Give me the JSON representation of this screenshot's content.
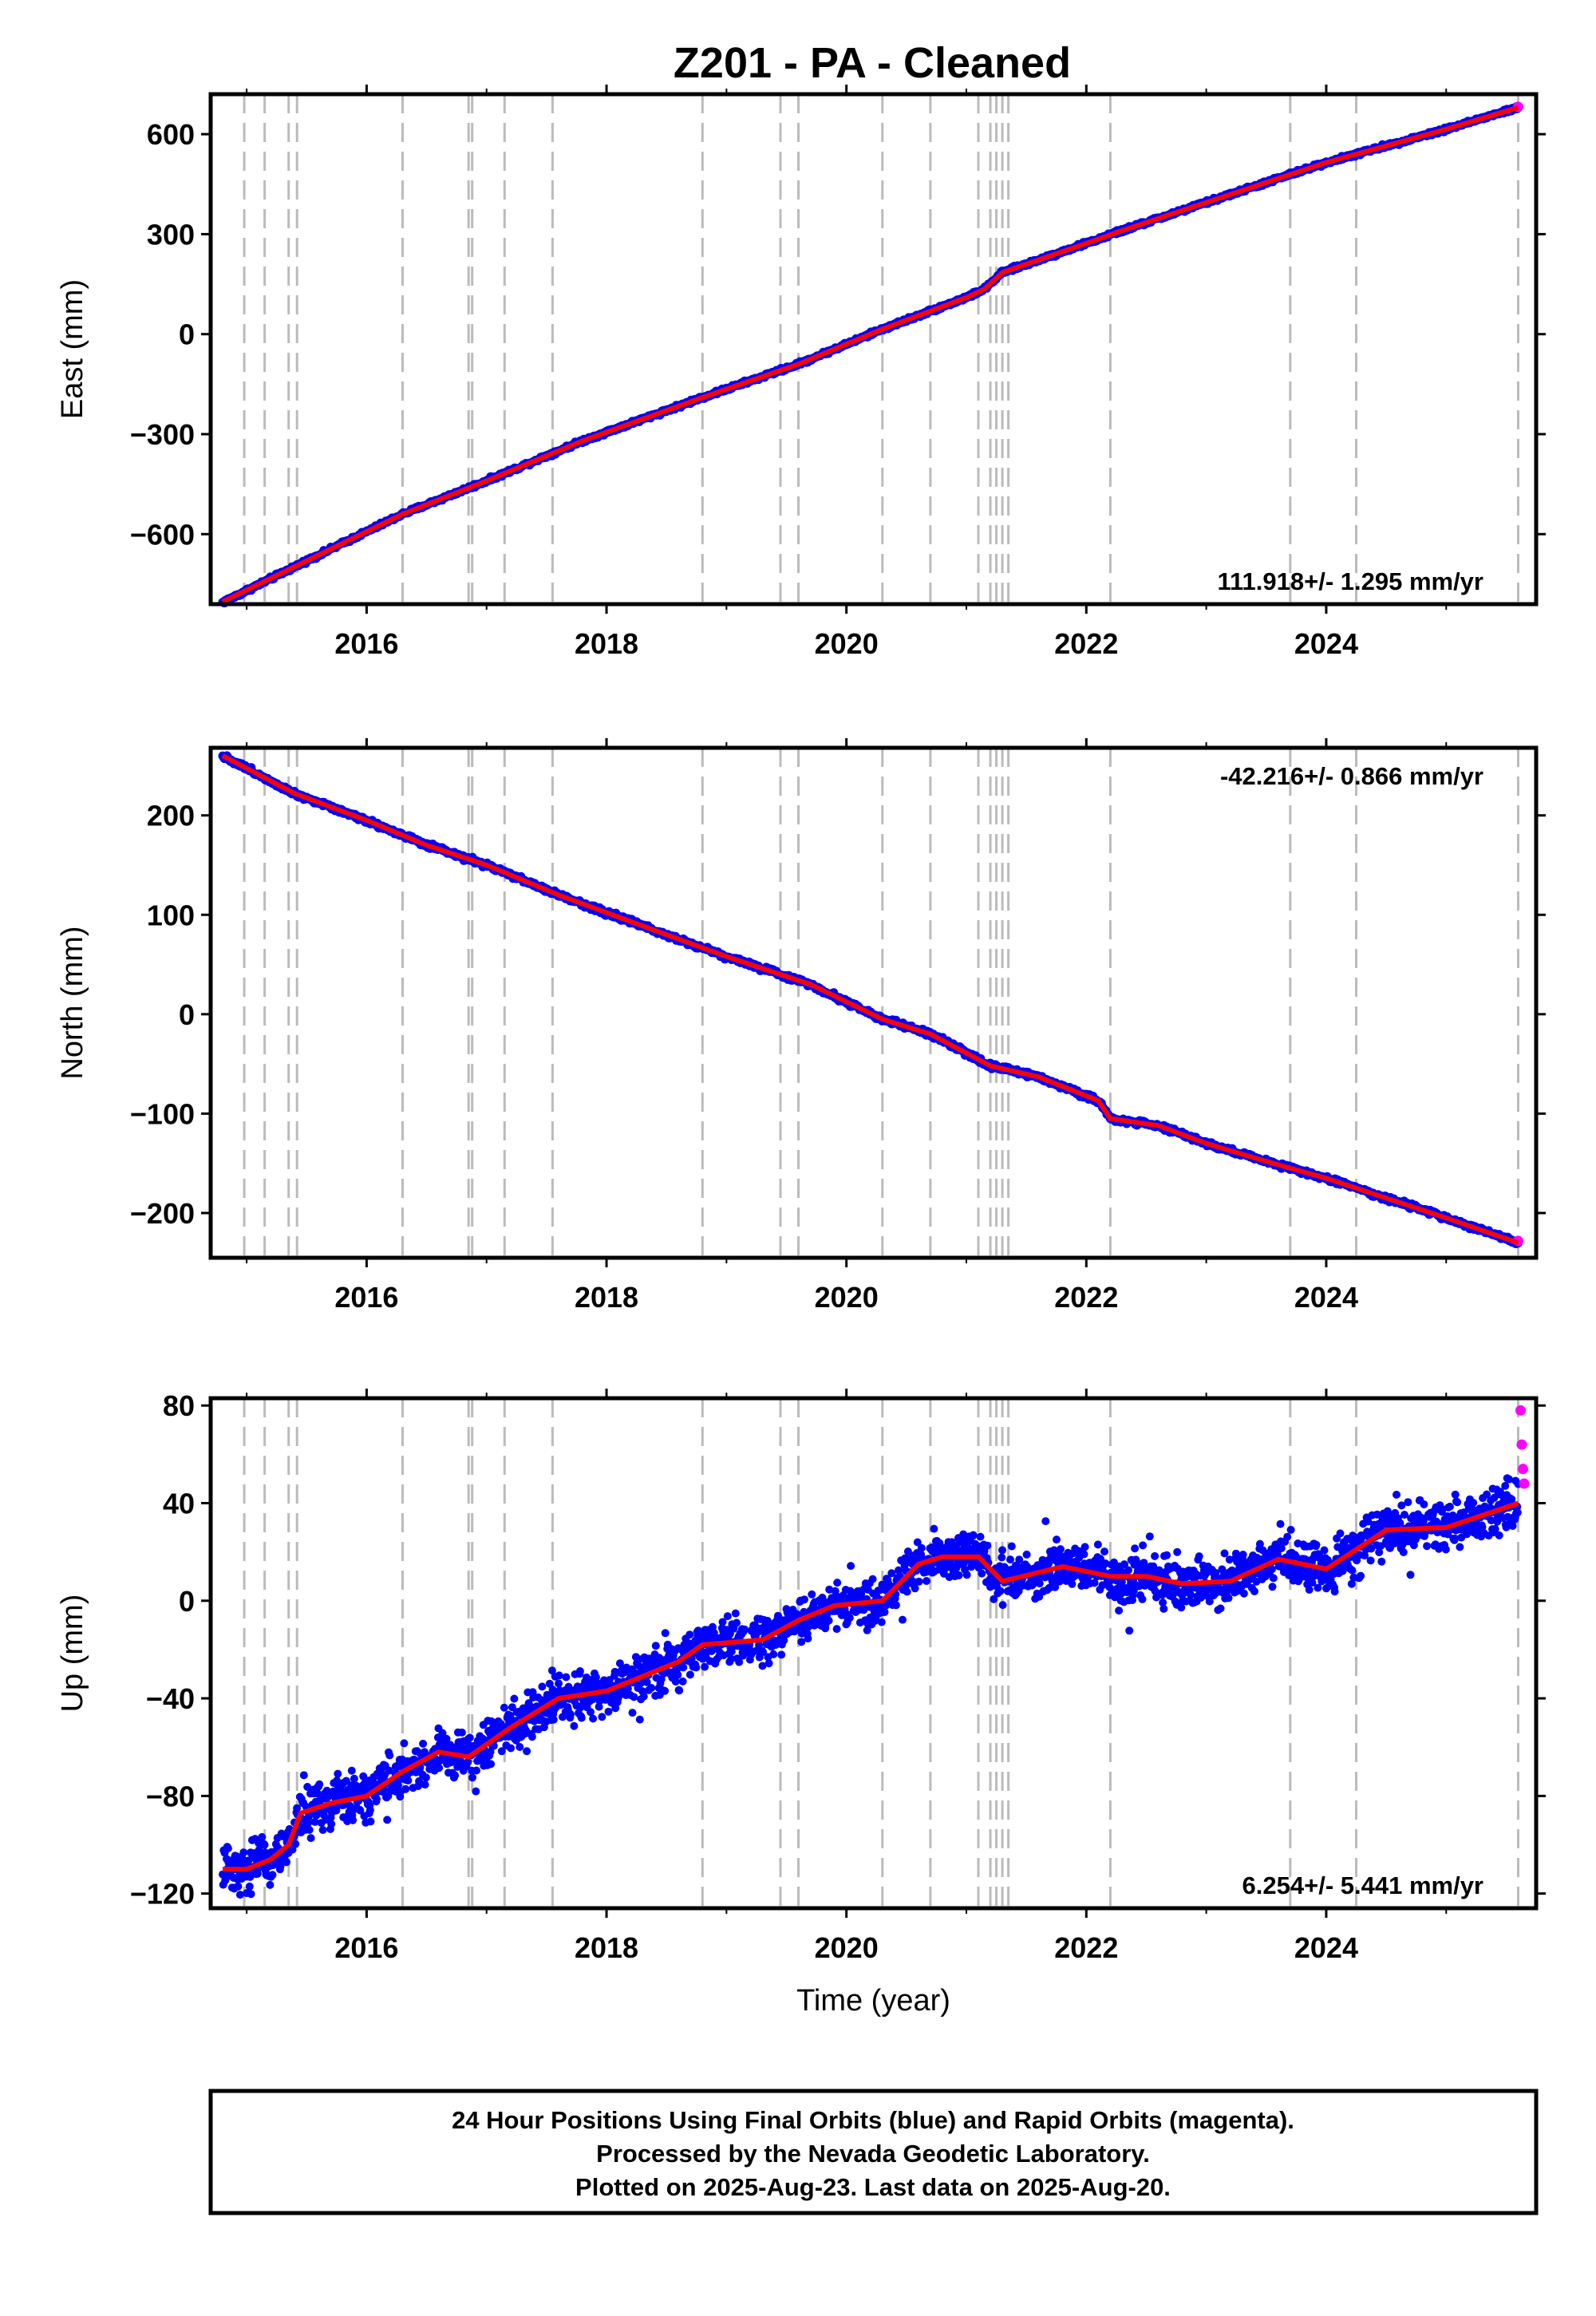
{
  "title": "Z201  - PA - Cleaned",
  "chart_data": [
    {
      "type": "scatter",
      "panel": "east",
      "ylabel": "East (mm)",
      "xlabel": "",
      "xlim": [
        2014.7,
        2025.75
      ],
      "ylim": [
        -810,
        720
      ],
      "yticks": [
        -600,
        -300,
        0,
        300,
        600
      ],
      "ytick_labels": [
        "−600",
        "−300",
        "0",
        "300",
        "600"
      ],
      "xticks": [
        2016,
        2018,
        2020,
        2022,
        2024
      ],
      "xtick_labels": [
        "2016",
        "2018",
        "2020",
        "2022",
        "2024"
      ],
      "rate_text": "111.918+/- 1.295 mm/yr",
      "rate_position": "bottom-right",
      "series": [
        {
          "name": "Final Orbits (blue)",
          "color": "#0000ff",
          "x": [
            2014.8,
            2015.5,
            2016.3,
            2017.0,
            2017.8,
            2018.8,
            2019.6,
            2020.3,
            2021.0,
            2021.15,
            2021.3,
            2022.1,
            2022.25,
            2023.0,
            2024.0,
            2025.0,
            2025.6
          ],
          "y": [
            -805,
            -680,
            -540,
            -440,
            -320,
            -190,
            -90,
            15,
            110,
            135,
            185,
            285,
            305,
            395,
            515,
            615,
            680
          ]
        },
        {
          "name": "Rapid Orbits (magenta)",
          "color": "#ff00ff",
          "x": [
            2025.6
          ],
          "y": [
            682
          ]
        },
        {
          "name": "model",
          "color": "#ff0000",
          "x": [
            2014.8,
            2015.5,
            2016.3,
            2017.0,
            2017.8,
            2018.8,
            2019.6,
            2020.3,
            2021.0,
            2021.15,
            2021.3,
            2022.1,
            2022.25,
            2023.0,
            2024.0,
            2025.0,
            2025.6
          ],
          "y": [
            -803,
            -680,
            -540,
            -440,
            -320,
            -190,
            -90,
            15,
            110,
            135,
            185,
            285,
            305,
            395,
            515,
            615,
            680
          ]
        }
      ]
    },
    {
      "type": "scatter",
      "panel": "north",
      "ylabel": "North (mm)",
      "xlabel": "",
      "xlim": [
        2014.7,
        2025.75
      ],
      "ylim": [
        -245,
        268
      ],
      "yticks": [
        -200,
        -100,
        0,
        100,
        200
      ],
      "ytick_labels": [
        "−200",
        "−100",
        "0",
        "100",
        "200"
      ],
      "xticks": [
        2016,
        2018,
        2020,
        2022,
        2024
      ],
      "xtick_labels": [
        "2016",
        "2018",
        "2020",
        "2022",
        "2024"
      ],
      "rate_text": "-42.216+/- 0.866 mm/yr",
      "rate_position": "top-right",
      "series": [
        {
          "name": "Final Orbits (blue)",
          "color": "#0000ff",
          "x": [
            2014.8,
            2015.4,
            2016.0,
            2016.5,
            2017.0,
            2017.6,
            2018.5,
            2019.0,
            2019.7,
            2020.3,
            2020.7,
            2021.2,
            2021.6,
            2022.1,
            2022.2,
            2022.6,
            2023.0,
            2023.5,
            2024.0,
            2024.5,
            2025.0,
            2025.6
          ],
          "y": [
            260,
            222,
            195,
            170,
            150,
            120,
            80,
            58,
            30,
            -5,
            -20,
            -52,
            -63,
            -87,
            -105,
            -112,
            -130,
            -148,
            -165,
            -185,
            -205,
            -230
          ]
        },
        {
          "name": "Rapid Orbits (magenta)",
          "color": "#ff00ff",
          "x": [
            2025.6
          ],
          "y": [
            -228
          ]
        },
        {
          "name": "model",
          "color": "#ff0000",
          "x": [
            2014.8,
            2015.4,
            2016.0,
            2016.5,
            2017.0,
            2017.6,
            2018.5,
            2019.0,
            2019.7,
            2020.3,
            2020.7,
            2021.2,
            2021.6,
            2022.1,
            2022.2,
            2022.6,
            2023.0,
            2023.5,
            2024.0,
            2024.5,
            2025.0,
            2025.6
          ],
          "y": [
            260,
            222,
            195,
            170,
            150,
            120,
            80,
            58,
            30,
            -5,
            -20,
            -52,
            -63,
            -87,
            -105,
            -112,
            -130,
            -148,
            -165,
            -185,
            -205,
            -230
          ]
        }
      ]
    },
    {
      "type": "scatter",
      "panel": "up",
      "ylabel": "Up (mm)",
      "xlabel": "Time (year)",
      "xlim": [
        2014.7,
        2025.75
      ],
      "ylim": [
        -126,
        83
      ],
      "yticks": [
        -120,
        -80,
        -40,
        0,
        40,
        80
      ],
      "ytick_labels": [
        "−120",
        "−80",
        "−40",
        "0",
        "40",
        "80"
      ],
      "xticks": [
        2016,
        2018,
        2020,
        2022,
        2024
      ],
      "xtick_labels": [
        "2016",
        "2018",
        "2020",
        "2022",
        "2024"
      ],
      "rate_text": "6.254+/- 5.441 mm/yr",
      "rate_position": "bottom-right",
      "series": [
        {
          "name": "Final Orbits (blue)",
          "color": "#0000ff",
          "x": [
            2014.8,
            2015.0,
            2015.2,
            2015.35,
            2015.45,
            2015.7,
            2016.0,
            2016.3,
            2016.6,
            2016.85,
            2017.2,
            2017.6,
            2018.0,
            2018.6,
            2018.8,
            2019.3,
            2019.6,
            2019.9,
            2020.3,
            2020.6,
            2020.8,
            2021.1,
            2021.3,
            2021.8,
            2022.2,
            2022.5,
            2022.8,
            2023.2,
            2023.6,
            2024.0,
            2024.5,
            2025.0,
            2025.6
          ],
          "y": [
            -110,
            -110,
            -106,
            -100,
            -87,
            -83,
            -80,
            -70,
            -62,
            -64,
            -52,
            -40,
            -37,
            -25,
            -18,
            -16,
            -8,
            -2,
            0,
            15,
            18,
            18,
            8,
            14,
            10,
            10,
            7,
            8,
            17,
            13,
            29,
            30,
            40
          ]
        },
        {
          "name": "Rapid Orbits (magenta)",
          "color": "#ff00ff",
          "x": [
            2025.62,
            2025.63,
            2025.64,
            2025.65
          ],
          "y": [
            78,
            64,
            54,
            48
          ]
        },
        {
          "name": "model",
          "color": "#ff0000",
          "x": [
            2014.8,
            2015.0,
            2015.2,
            2015.35,
            2015.45,
            2015.7,
            2016.0,
            2016.3,
            2016.6,
            2016.85,
            2017.2,
            2017.6,
            2018.0,
            2018.6,
            2018.8,
            2019.3,
            2019.6,
            2019.9,
            2020.3,
            2020.6,
            2020.8,
            2021.1,
            2021.3,
            2021.8,
            2022.2,
            2022.5,
            2022.8,
            2023.2,
            2023.6,
            2024.0,
            2024.5,
            2025.0,
            2025.6
          ],
          "y": [
            -110,
            -110,
            -106,
            -100,
            -87,
            -83,
            -80,
            -70,
            -62,
            -64,
            -52,
            -40,
            -37,
            -25,
            -18,
            -16,
            -8,
            -2,
            0,
            15,
            18,
            18,
            8,
            14,
            10,
            10,
            7,
            8,
            17,
            13,
            29,
            30,
            40
          ]
        }
      ]
    }
  ],
  "event_lines": [
    2014.98,
    2015.15,
    2015.35,
    2015.42,
    2016.3,
    2016.85,
    2016.88,
    2017.15,
    2017.55,
    2018.8,
    2019.45,
    2019.6,
    2020.3,
    2020.7,
    2021.1,
    2021.2,
    2021.25,
    2021.3,
    2021.35,
    2022.2,
    2023.7,
    2024.25,
    2025.6
  ],
  "colors": {
    "final_orbits": "#0000ff",
    "rapid_orbits": "#ff00ff",
    "model_line": "#ff0000",
    "event_lines": "#bbbbbb"
  },
  "footer": {
    "line1": "24 Hour Positions Using Final Orbits (blue) and Rapid Orbits (magenta).",
    "line2": "Processed by the Nevada Geodetic Laboratory.",
    "line3": "Plotted on 2025-Aug-23. Last data on 2025-Aug-20."
  }
}
